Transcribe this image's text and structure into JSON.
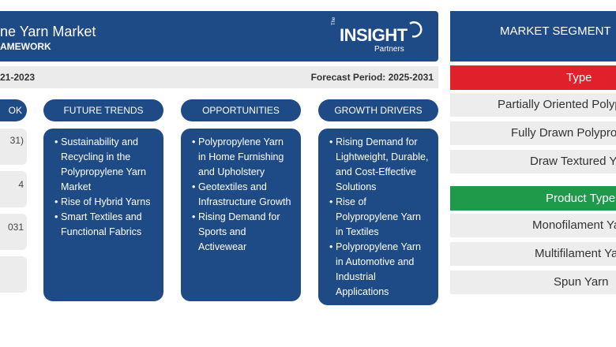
{
  "header": {
    "title": "ne Yarn Market",
    "subtitle": "AMEWORK",
    "logo": {
      "the": "The",
      "name": "INSIGHT",
      "partners": "Partners"
    }
  },
  "period": {
    "historical": "21-2023",
    "forecast": "Forecast Period: 2025-2031"
  },
  "outlook": {
    "header": "OK",
    "boxes": [
      [
        "31)"
      ],
      [
        "4",
        ""
      ],
      [
        "031",
        ""
      ],
      [
        ""
      ]
    ]
  },
  "columns": [
    {
      "header": "FUTURE TRENDS",
      "items": [
        "Sustainability and Recycling in the Polypropylene Yarn Market",
        "Rise of Hybrid Yarns",
        "Smart Textiles and Functional Fabrics"
      ]
    },
    {
      "header": "OPPORTUNITIES",
      "items": [
        "Polypropylene Yarn in Home Furnishing and Upholstery",
        "Geotextiles and Infrastructure Growth",
        "Rising Demand for Sports and Activewear"
      ]
    },
    {
      "header": "GROWTH DRIVERS",
      "items": [
        "Rising Demand for Lightweight, Durable, and Cost-Effective Solutions",
        "Rise of Polypropylene Yarn in Textiles",
        "Polypropylene Yarn in Automotive and Industrial Applications"
      ]
    }
  ],
  "segmentation": {
    "title": "MARKET SEGMENT",
    "categories": [
      {
        "label": "Type",
        "color": "#e0212b",
        "items": [
          "Partially Oriented Polyp",
          "Fully Drawn Polyprop",
          "Draw Textured Ya"
        ]
      },
      {
        "label": "Product Type",
        "color": "#1e9a4a",
        "items": [
          "Monofilament Ya",
          "Multifilament Ya",
          "Spun Yarn"
        ]
      }
    ]
  },
  "colors": {
    "primary": "#1e4a86",
    "type_red": "#e0212b",
    "product_green": "#1e9a4a",
    "strip_gray": "#ebebeb"
  }
}
